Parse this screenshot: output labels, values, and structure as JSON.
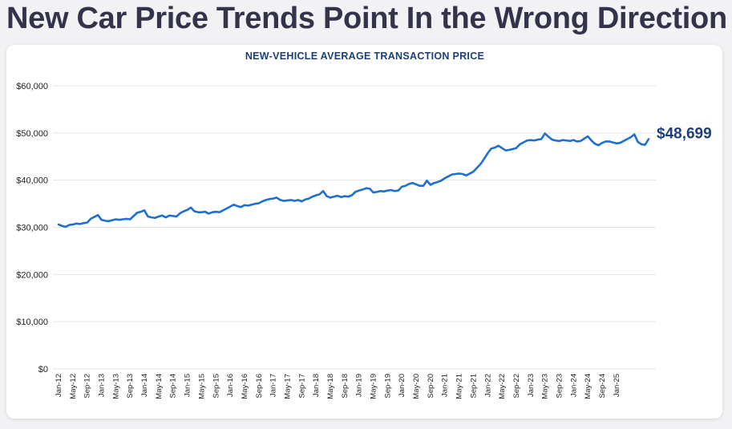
{
  "headline": "New Car Price Trends Point In the Wrong Direction",
  "chart_data": {
    "type": "line",
    "title": "NEW-VEHICLE AVERAGE TRANSACTION PRICE",
    "ylim": [
      0,
      60000
    ],
    "y_ticks": [
      0,
      10000,
      20000,
      30000,
      40000,
      50000,
      60000
    ],
    "y_tick_labels": [
      "$0",
      "$10,000",
      "$20,000",
      "$30,000",
      "$40,000",
      "$50,000",
      "$60,000"
    ],
    "x_tick_labels": [
      "Jan-12",
      "May-12",
      "Sep-12",
      "Jan-13",
      "May-13",
      "Sep-13",
      "Jan-14",
      "May-14",
      "Sep-14",
      "Jan-15",
      "May-15",
      "Sep-15",
      "Jan-16",
      "May-16",
      "Sep-16",
      "Jan-17",
      "May-17",
      "Sep-17",
      "Jan-18",
      "May-18",
      "Sep-18",
      "Jan-19",
      "May-19",
      "Sep-19",
      "Jan-20",
      "May-20",
      "Sep-20",
      "Jan-21",
      "May-21",
      "Sep-21",
      "Jan-22",
      "May-22",
      "Sep-22",
      "Jan-23",
      "May-23",
      "Sep-23",
      "Jan-24",
      "May-24",
      "Sep-24",
      "Jan-25"
    ],
    "grid": true,
    "line_color": "#1e6fd0",
    "end_value_label": "$48,699",
    "series": [
      {
        "values": [
          30600,
          30300,
          30100,
          30500,
          30600,
          30800,
          30700,
          30900,
          31000,
          31800,
          32200,
          32600,
          31600,
          31400,
          31300,
          31500,
          31700,
          31600,
          31700,
          31800,
          31700,
          32400,
          33100,
          33300,
          33600,
          32300,
          32100,
          32000,
          32300,
          32500,
          32100,
          32500,
          32400,
          32300,
          33000,
          33400,
          33700,
          34200,
          33400,
          33200,
          33200,
          33300,
          32900,
          33200,
          33300,
          33200,
          33600,
          34000,
          34400,
          34800,
          34500,
          34300,
          34700,
          34600,
          34800,
          35000,
          35100,
          35500,
          35800,
          36000,
          36100,
          36300,
          35800,
          35600,
          35700,
          35800,
          35600,
          35800,
          35500,
          35900,
          36100,
          36500,
          36800,
          37000,
          37700,
          36600,
          36300,
          36500,
          36700,
          36400,
          36600,
          36500,
          36800,
          37500,
          37800,
          38000,
          38300,
          38200,
          37400,
          37500,
          37700,
          37600,
          37800,
          37900,
          37700,
          37800,
          38600,
          38800,
          39200,
          39400,
          39100,
          38800,
          38800,
          39900,
          39000,
          39400,
          39600,
          39900,
          40400,
          40800,
          41200,
          41300,
          41400,
          41300,
          41000,
          41400,
          41800,
          42600,
          43400,
          44500,
          45700,
          46700,
          46900,
          47300,
          46800,
          46300,
          46400,
          46600,
          46800,
          47600,
          48000,
          48400,
          48500,
          48400,
          48600,
          48700,
          49900,
          49200,
          48600,
          48400,
          48300,
          48500,
          48400,
          48300,
          48500,
          48200,
          48300,
          48800,
          49300,
          48400,
          47700,
          47400,
          47900,
          48200,
          48200,
          48000,
          47800,
          47900,
          48300,
          48700,
          49100,
          49700,
          48100,
          47600,
          47500,
          48699
        ]
      }
    ]
  }
}
